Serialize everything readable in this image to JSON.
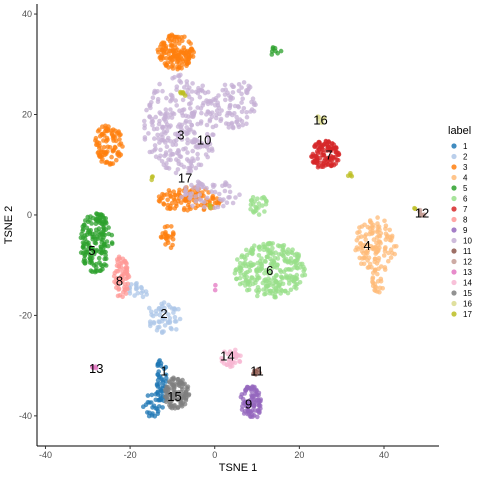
{
  "chart_data": {
    "type": "scatter",
    "title": "",
    "xlabel": "TSNE 1",
    "ylabel": "TSNE 2",
    "xlim": [
      -42,
      53
    ],
    "ylim": [
      -46,
      42
    ],
    "x_ticks": [
      -40,
      -20,
      0,
      20,
      40
    ],
    "y_ticks": [
      -40,
      -20,
      0,
      20,
      40
    ],
    "x_tick_labels": [
      "-40",
      "-20",
      "0",
      "20",
      "40"
    ],
    "y_tick_labels": [
      "-40",
      "-20",
      "0",
      "20",
      "40"
    ],
    "grid": false,
    "legend_title": "label",
    "legend_position": "right",
    "series": [
      {
        "name": "1",
        "color": "#1F77B4",
        "blobs": [
          [
            -12.5,
            -33,
            1.2,
            5.5,
            45
          ],
          [
            -14.5,
            -38,
            2.5,
            2.5,
            25
          ]
        ],
        "label_xy": [
          -12,
          -31
        ]
      },
      {
        "name": "2",
        "color": "#AEC7E8",
        "blobs": [
          [
            -12,
            -20.5,
            4.5,
            3.2,
            55
          ],
          [
            -18,
            -15,
            3.5,
            1.5,
            20
          ]
        ],
        "label_xy": [
          -12,
          -19.5
        ]
      },
      {
        "name": "3",
        "color": "#FF7F0E",
        "blobs": [
          [
            -9,
            32.5,
            4.5,
            3.5,
            140
          ],
          [
            -25,
            14,
            3.5,
            4,
            90
          ],
          [
            -6,
            3,
            7.5,
            2.5,
            110
          ],
          [
            -11,
            -4.5,
            1.8,
            2.5,
            25
          ]
        ],
        "label_xy": [
          -8,
          16
        ]
      },
      {
        "name": "4",
        "color": "#FFBB78",
        "blobs": [
          [
            38,
            -6,
            5,
            5.5,
            120
          ],
          [
            38.5,
            -13,
            1.5,
            3,
            20
          ]
        ],
        "label_xy": [
          36,
          -6
        ]
      },
      {
        "name": "5",
        "color": "#2CA02C",
        "blobs": [
          [
            -28,
            -5.5,
            3.8,
            6,
            160
          ],
          [
            14.5,
            32.5,
            1.2,
            1.2,
            8
          ]
        ],
        "label_xy": [
          -29,
          -7
        ]
      },
      {
        "name": "6",
        "color": "#98DF8A",
        "blobs": [
          [
            13,
            -11,
            8.5,
            5.5,
            280
          ],
          [
            10,
            2,
            2.5,
            2,
            25
          ]
        ],
        "label_xy": [
          13,
          -11
        ]
      },
      {
        "name": "7",
        "color": "#D62728",
        "blobs": [
          [
            26,
            12,
            3.5,
            2.8,
            110
          ]
        ],
        "label_xy": [
          27,
          12
        ]
      },
      {
        "name": "8",
        "color": "#FF9896",
        "blobs": [
          [
            -22,
            -12.5,
            1.8,
            4.5,
            65
          ]
        ],
        "label_xy": [
          -22.5,
          -13
        ]
      },
      {
        "name": "9",
        "color": "#9467BD",
        "blobs": [
          [
            8.5,
            -37.5,
            2.5,
            3.5,
            95
          ]
        ],
        "label_xy": [
          8,
          -37.5
        ]
      },
      {
        "name": "10",
        "color": "#C5B0D5",
        "blobs": [
          [
            -8,
            18,
            9,
            10,
            280
          ],
          [
            5,
            22,
            5,
            5,
            80
          ],
          [
            -1,
            4,
            7,
            3,
            60
          ]
        ],
        "label_xy": [
          -2.5,
          15
        ]
      },
      {
        "name": "11",
        "color": "#8C564B",
        "blobs": [
          [
            10,
            -31.5,
            1,
            0.8,
            6
          ]
        ],
        "label_xy": [
          10,
          -31
        ]
      },
      {
        "name": "12",
        "color": "#C49C94",
        "blobs": [
          [
            49,
            0.5,
            0.6,
            0.8,
            6
          ]
        ],
        "label_xy": [
          49,
          0.5
        ]
      },
      {
        "name": "13",
        "color": "#E377C2",
        "blobs": [
          [
            -28.5,
            -30.5,
            0.6,
            0.6,
            5
          ],
          [
            0,
            -14.5,
            0.6,
            0.6,
            2
          ]
        ],
        "label_xy": [
          -28,
          -30.5
        ]
      },
      {
        "name": "14",
        "color": "#F7B6D2",
        "blobs": [
          [
            4,
            -28.5,
            2.5,
            1.8,
            35
          ]
        ],
        "label_xy": [
          3,
          -28
        ]
      },
      {
        "name": "15",
        "color": "#7F7F7F",
        "blobs": [
          [
            -9,
            -35.5,
            3,
            3.2,
            100
          ]
        ],
        "label_xy": [
          -9.5,
          -36
        ]
      },
      {
        "name": "16",
        "color": "#DBDB8D",
        "blobs": [
          [
            25,
            19,
            1.2,
            0.7,
            8
          ]
        ],
        "label_xy": [
          25,
          19
        ]
      },
      {
        "name": "17",
        "color": "#BCBD22",
        "blobs": [
          [
            -7.5,
            24,
            1,
            0.6,
            6
          ],
          [
            -15,
            7.5,
            0.5,
            0.6,
            3
          ],
          [
            32,
            8,
            0.5,
            0.8,
            4
          ],
          [
            47.5,
            1.5,
            0.4,
            0.4,
            2
          ],
          [
            -1,
            2,
            0.6,
            0.6,
            2
          ]
        ],
        "label_xy": [
          -7,
          7.5
        ]
      }
    ]
  }
}
